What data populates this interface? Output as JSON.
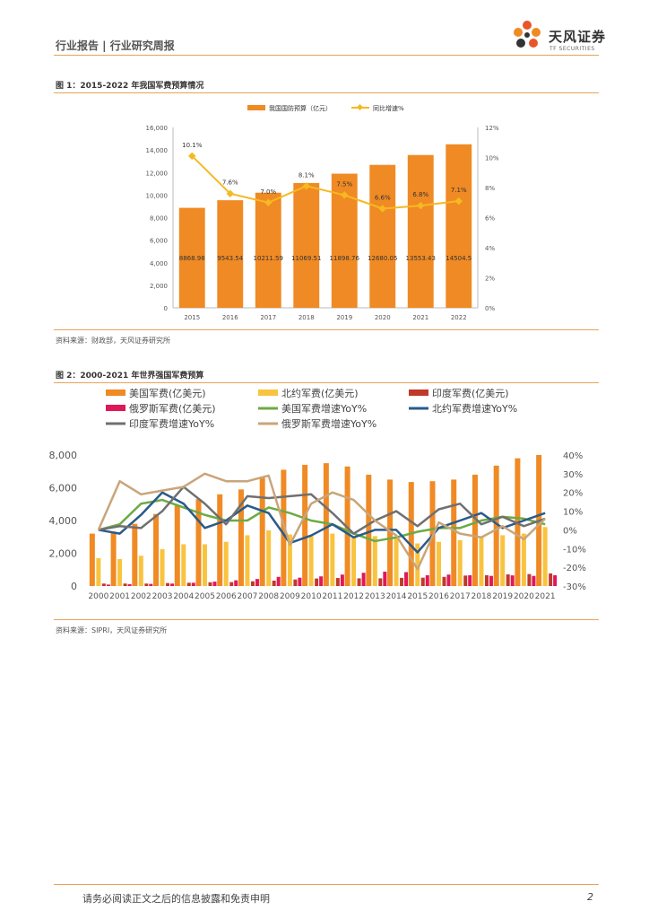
{
  "header": {
    "title": "行业报告 | 行业研究周报"
  },
  "logo": {
    "text": "天风证券",
    "subtext": "TF SECURITIES"
  },
  "figure1": {
    "title": "图 1：2015-2022 年我国军费预算情况",
    "source": "资料来源：财政部，天风证券研究所"
  },
  "figure2": {
    "title": "图 2：2000-2021 年世界强国军费预算",
    "source": "资料来源：SIPRI，天风证券研究所"
  },
  "footer": {
    "disclaimer": "请务必阅读正文之后的信息披露和免责申明",
    "page": "2"
  },
  "colors": {
    "accent": "#f08a24",
    "yellow": "#f5c342",
    "line_orange": "#f5b921"
  },
  "chart_data": [
    {
      "type": "bar",
      "categories": [
        "2015",
        "2016",
        "2017",
        "2018",
        "2019",
        "2020",
        "2021",
        "2022"
      ],
      "series": [
        {
          "name": "我国国防预算（亿元）",
          "axis": "left",
          "kind": "bar",
          "color": "#f08a24",
          "values": [
            8868.98,
            9543.54,
            10211.59,
            11069.51,
            11898.76,
            12680.05,
            13553.43,
            14504.5
          ],
          "labels": [
            "8868.98",
            "9543.54",
            "10211.59",
            "11069.51",
            "11898.76",
            "12680.05",
            "13553.43",
            "14504.5"
          ]
        },
        {
          "name": "同比增速%",
          "axis": "right",
          "kind": "line",
          "color": "#f5b921",
          "values": [
            10.1,
            7.6,
            7.0,
            8.1,
            7.5,
            6.6,
            6.8,
            7.1
          ],
          "labels": [
            "10.1%",
            "7.6%",
            "7.0%",
            "8.1%",
            "7.5%",
            "6.6%",
            "6.8%",
            "7.1%"
          ]
        }
      ],
      "ylim": [
        0,
        16000
      ],
      "yticks": [
        "0",
        "2,000",
        "4,000",
        "6,000",
        "8,000",
        "10,000",
        "12,000",
        "14,000",
        "16,000"
      ],
      "y2lim": [
        0,
        12
      ],
      "y2ticks": [
        "0%",
        "2%",
        "4%",
        "6%",
        "8%",
        "10%",
        "12%"
      ],
      "legend": "top-center",
      "grid": false
    },
    {
      "type": "bar",
      "categories": [
        "2000",
        "2001",
        "2002",
        "2003",
        "2004",
        "2005",
        "2006",
        "2007",
        "2008",
        "2009",
        "2010",
        "2011",
        "2012",
        "2013",
        "2014",
        "2015",
        "2016",
        "2017",
        "2018",
        "2019",
        "2020",
        "2021"
      ],
      "series": [
        {
          "name": "美国军费(亿美元)",
          "axis": "left",
          "kind": "bar",
          "color": "#f08a24",
          "values": [
            3200,
            3300,
            3800,
            4400,
            4900,
            5300,
            5600,
            5900,
            6600,
            7100,
            7400,
            7500,
            7300,
            6800,
            6500,
            6350,
            6400,
            6500,
            6800,
            7350,
            7800,
            8000
          ]
        },
        {
          "name": "北约军费(亿美元)",
          "axis": "left",
          "kind": "bar",
          "color": "#f8c440",
          "values": [
            1700,
            1650,
            1850,
            2250,
            2550,
            2550,
            2700,
            3100,
            3400,
            3150,
            3050,
            3200,
            3000,
            3050,
            3000,
            2600,
            2700,
            2800,
            3000,
            3100,
            3200,
            3600
          ]
        },
        {
          "name": "印度军费(亿美元)",
          "axis": "left",
          "kind": "bar",
          "color": "#c0392b",
          "values": [
            150,
            150,
            150,
            180,
            200,
            230,
            240,
            290,
            330,
            400,
            460,
            490,
            470,
            470,
            500,
            510,
            560,
            640,
            660,
            710,
            730,
            770
          ]
        },
        {
          "name": "俄罗斯军费(亿美元)",
          "axis": "left",
          "kind": "bar",
          "color": "#e0185a",
          "values": [
            90,
            110,
            130,
            150,
            200,
            270,
            350,
            430,
            560,
            510,
            590,
            700,
            810,
            880,
            850,
            660,
            700,
            660,
            620,
            650,
            620,
            660
          ]
        },
        {
          "name": "美国军费增速YoY%",
          "axis": "right",
          "kind": "line",
          "color": "#6bab44",
          "values": [
            0,
            3,
            14,
            16,
            12,
            8,
            5,
            5,
            12,
            9,
            5,
            3,
            -2,
            -6,
            -4,
            -1,
            1,
            1,
            5,
            7,
            6,
            3
          ]
        },
        {
          "name": "北约军费增速YoY%",
          "axis": "right",
          "kind": "line",
          "color": "#2a5a8a",
          "values": [
            0,
            -2,
            8,
            20,
            14,
            1,
            5,
            13,
            9,
            -7,
            -3,
            3,
            -4,
            0,
            0,
            -12,
            1,
            5,
            9,
            1,
            5,
            9
          ]
        },
        {
          "name": "印度军费增速YoY%",
          "axis": "right",
          "kind": "line",
          "color": "#707070",
          "values": [
            0,
            2,
            1,
            10,
            23,
            14,
            3,
            18,
            17,
            18,
            19,
            9,
            -2,
            5,
            10,
            2,
            11,
            14,
            3,
            7,
            2,
            6
          ]
        },
        {
          "name": "俄罗斯军费增速YoY%",
          "axis": "right",
          "kind": "line",
          "color": "#c9a57a",
          "values": [
            0,
            26,
            19,
            21,
            23,
            30,
            26,
            26,
            29,
            -8,
            14,
            20,
            16,
            5,
            -3,
            -21,
            4,
            -2,
            -4,
            2,
            -5,
            6
          ]
        }
      ],
      "ylim": [
        0,
        8000
      ],
      "yticks": [
        "0",
        "2,000",
        "4,000",
        "6,000",
        "8,000"
      ],
      "y2lim": [
        -30,
        40
      ],
      "y2ticks": [
        "-30%",
        "-20%",
        "-10%",
        "0%",
        "10%",
        "20%",
        "30%",
        "40%"
      ],
      "legend": "top",
      "grid": false
    }
  ]
}
